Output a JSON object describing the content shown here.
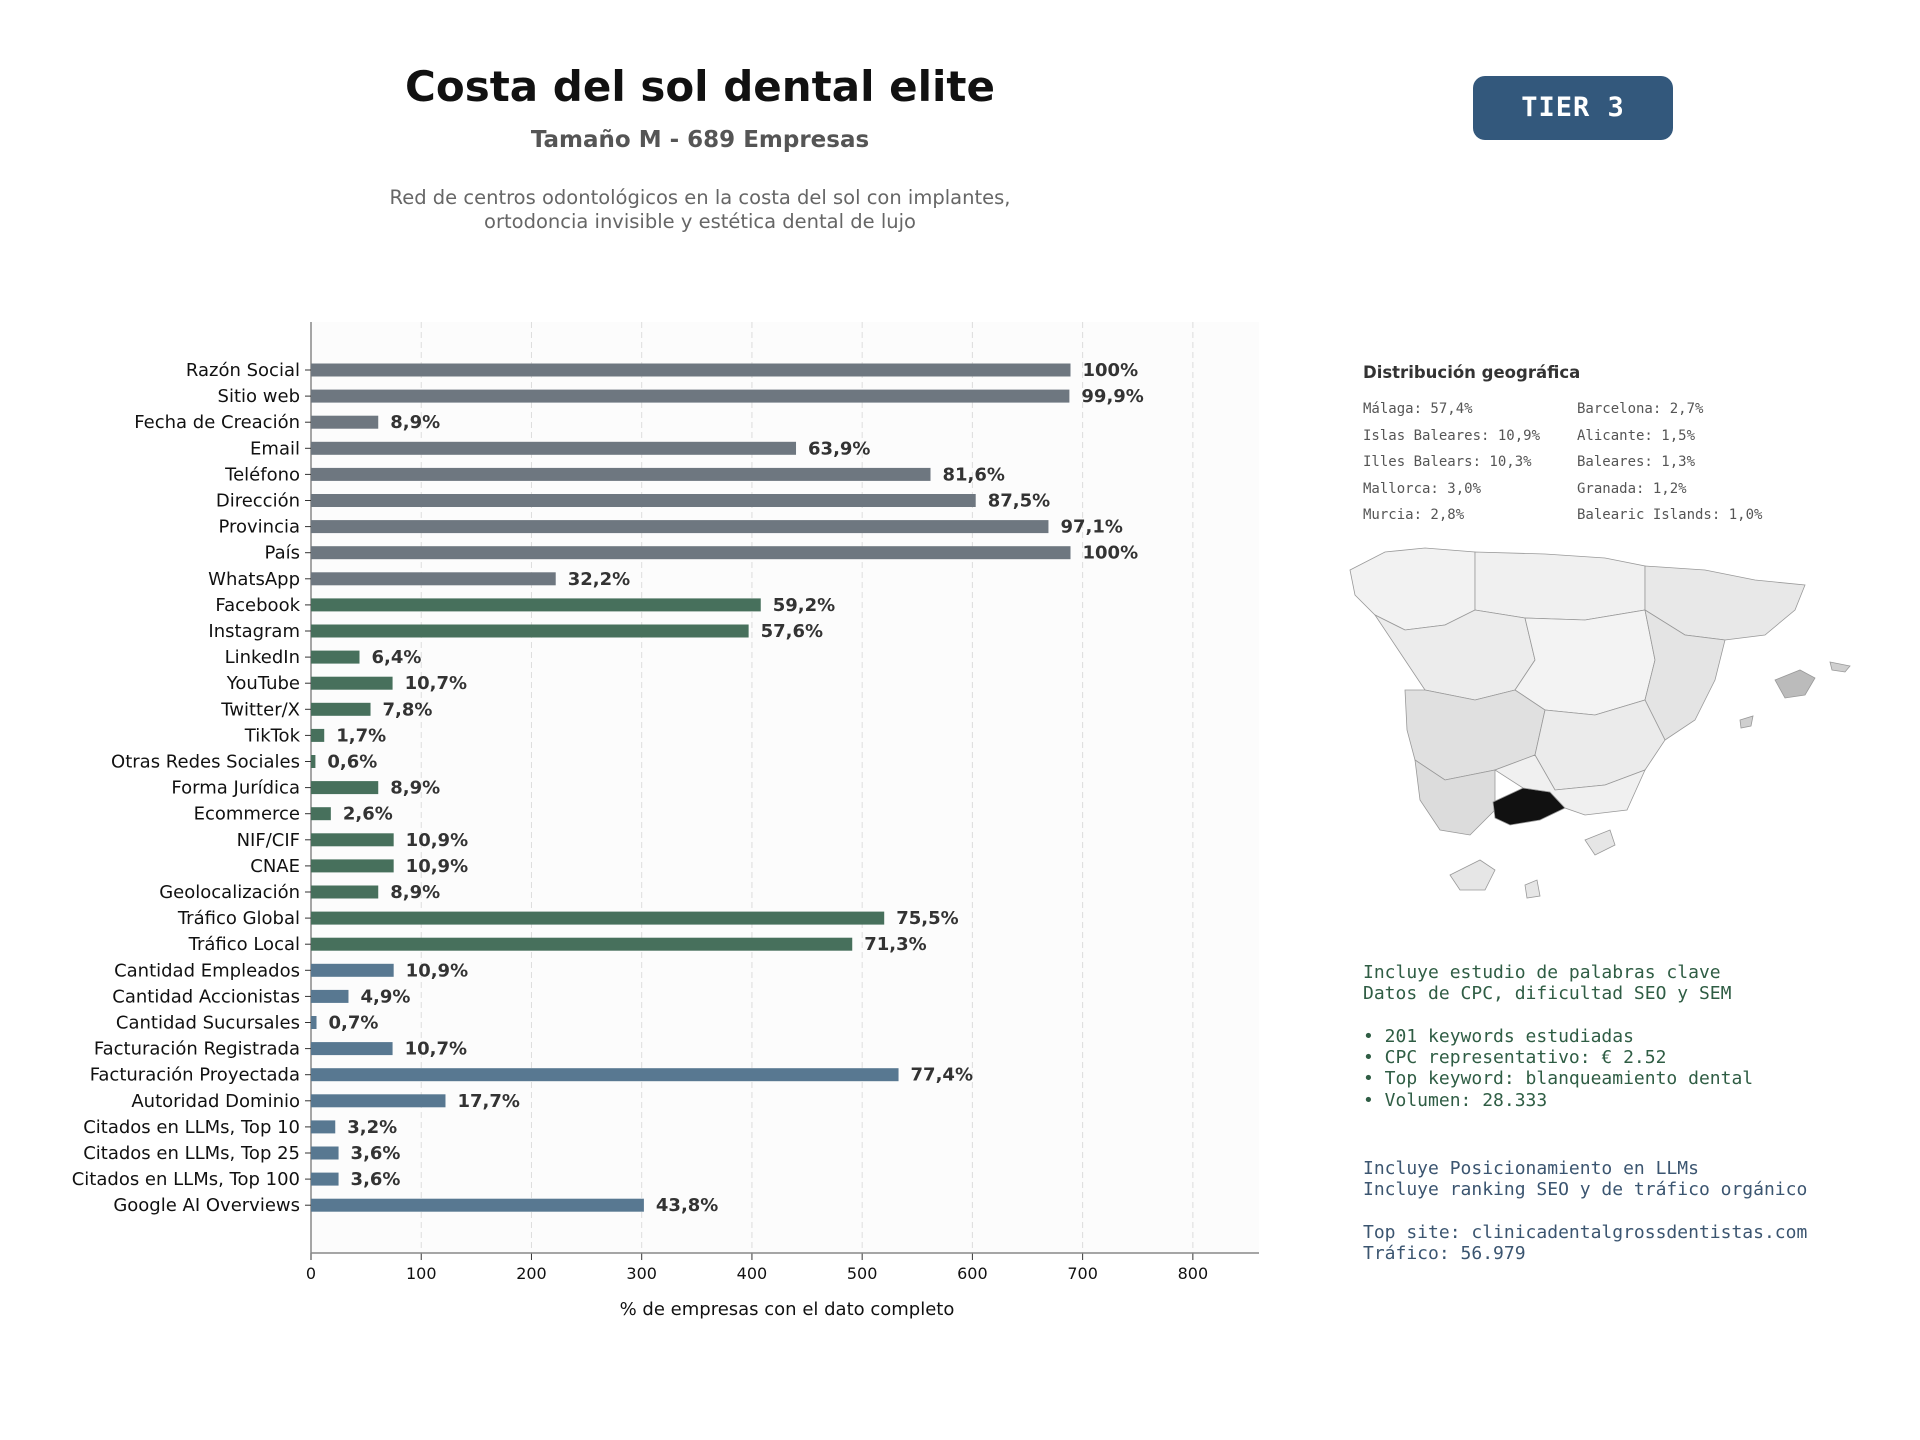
{
  "header": {
    "title": "Costa del sol dental elite",
    "subtitle": "Tamaño M - 689 Empresas",
    "description_line1": "Red de centros odontológicos en la costa del sol con implantes,",
    "description_line2": "ortodoncia invisible y estética dental de lujo",
    "tier": "TIER 3"
  },
  "chart_data": {
    "type": "bar",
    "orientation": "horizontal",
    "xlabel": "% de empresas con el dato completo",
    "xlim": [
      0,
      860
    ],
    "xticks": [
      0,
      100,
      200,
      300,
      400,
      500,
      600,
      700,
      800
    ],
    "grid": "vertical dashed",
    "total": 689,
    "categories": [
      "Razón Social",
      "Sitio web",
      "Fecha de Creación",
      "Email",
      "Teléfono",
      "Dirección",
      "Provincia",
      "País",
      "WhatsApp",
      "Facebook",
      "Instagram",
      "LinkedIn",
      "YouTube",
      "Twitter/X",
      "TikTok",
      "Otras Redes Sociales",
      "Forma Jurídica",
      "Ecommerce",
      "NIF/CIF",
      "CNAE",
      "Geolocalización",
      "Tráfico Global",
      "Tráfico Local",
      "Cantidad Empleados",
      "Cantidad Accionistas",
      "Cantidad Sucursales",
      "Facturación Registrada",
      "Facturación Proyectada",
      "Autoridad Dominio",
      "Citados en LLMs, Top 10",
      "Citados en LLMs, Top 25",
      "Citados en LLMs, Top 100",
      "Google AI Overviews"
    ],
    "values": [
      689,
      688,
      61,
      440,
      562,
      603,
      669,
      689,
      222,
      408,
      397,
      44,
      74,
      54,
      12,
      4,
      61,
      18,
      75,
      75,
      61,
      520,
      491,
      75,
      34,
      5,
      74,
      533,
      122,
      22,
      25,
      25,
      302
    ],
    "labels": [
      "100%",
      "99,9%",
      "8,9%",
      "63,9%",
      "81,6%",
      "87,5%",
      "97,1%",
      "100%",
      "32,2%",
      "59,2%",
      "57,6%",
      "6,4%",
      "10,7%",
      "7,8%",
      "1,7%",
      "0,6%",
      "8,9%",
      "2,6%",
      "10,9%",
      "10,9%",
      "8,9%",
      "75,5%",
      "71,3%",
      "10,9%",
      "4,9%",
      "0,7%",
      "10,7%",
      "77,4%",
      "17,7%",
      "3,2%",
      "3,6%",
      "3,6%",
      "43,8%"
    ],
    "groups": [
      "gray",
      "gray",
      "gray",
      "gray",
      "gray",
      "gray",
      "gray",
      "gray",
      "gray",
      "green",
      "green",
      "green",
      "green",
      "green",
      "green",
      "green",
      "green",
      "green",
      "green",
      "green",
      "green",
      "green",
      "green",
      "blue",
      "blue",
      "blue",
      "blue",
      "blue",
      "blue",
      "blue",
      "blue",
      "blue",
      "blue"
    ],
    "colors": {
      "gray": "#6e7780",
      "green": "#47705c",
      "blue": "#587891"
    }
  },
  "geo": {
    "title": "Distribución geográfica",
    "items": [
      "Málaga: 57,4%",
      "Barcelona: 2,7%",
      "Islas Baleares: 10,9%",
      "Alicante: 1,5%",
      "Illes Balears: 10,3%",
      "Baleares: 1,3%",
      "Mallorca: 3,0%",
      "Granada: 1,2%",
      "Murcia: 2,8%",
      "Balearic Islands: 1,0%"
    ],
    "highlight_color": "#111111"
  },
  "keywords": {
    "lines": [
      "Incluye estudio de palabras clave",
      "Datos de CPC, dificultad SEO y SEM",
      "",
      "• 201 keywords estudiadas",
      "• CPC representativo: € 2.52",
      "• Top keyword: blanqueamiento dental",
      "• Volumen: 28.333"
    ]
  },
  "llm": {
    "lines": [
      "Incluye Posicionamiento en LLMs",
      "Incluye ranking SEO y de tráfico orgánico",
      "",
      "Top site: clinicadentalgrossdentistas.com",
      "Tráfico: 56.979"
    ]
  }
}
